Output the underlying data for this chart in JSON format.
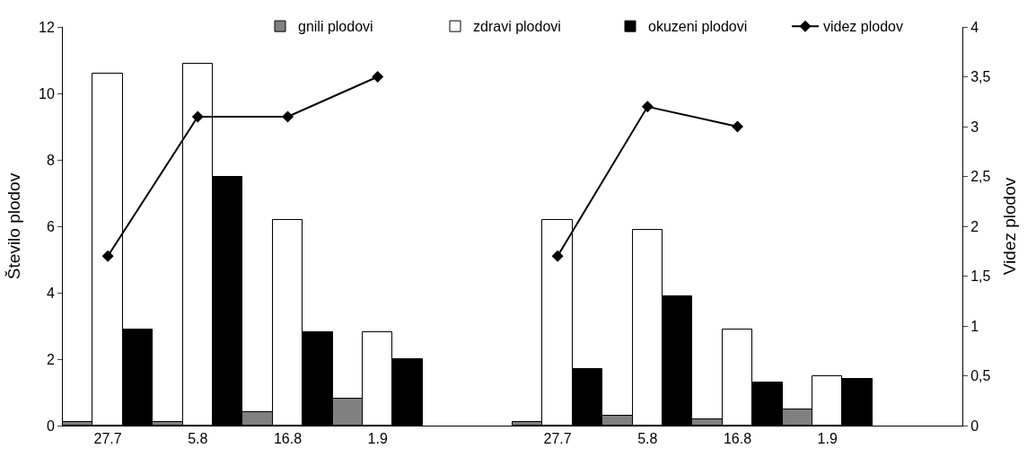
{
  "chart_data": {
    "type": "bar",
    "xlabel": null,
    "ylabel": "Število plodov",
    "y2label": "Videz plodov",
    "categories": [
      "27.7",
      "5.8",
      "16.8",
      "1.9",
      null,
      "27.7",
      "5.8",
      "16.8",
      "1.9",
      null
    ],
    "series": [
      {
        "name": "gnili plodovi",
        "color": "#808080",
        "values": [
          0.1,
          0.1,
          0.4,
          0.8,
          null,
          0.1,
          0.3,
          0.2,
          0.5,
          null
        ]
      },
      {
        "name": "zdravi plodovi",
        "color": "#ffffff",
        "values": [
          10.6,
          10.9,
          6.2,
          2.8,
          null,
          6.2,
          5.9,
          2.9,
          1.5,
          null
        ]
      },
      {
        "name": "okuzeni plodovi",
        "color": "#000000",
        "values": [
          2.9,
          7.5,
          2.8,
          2.0,
          null,
          1.7,
          3.9,
          1.3,
          1.4,
          null
        ]
      },
      {
        "name": "videz plodov",
        "color": "#000000",
        "type": "line",
        "axis": "y2",
        "marker": "diamond",
        "values": [
          1.7,
          3.1,
          3.1,
          3.5,
          null,
          1.7,
          3.2,
          3.0,
          null,
          null
        ]
      }
    ],
    "ylim": [
      0,
      12
    ],
    "yticks": [
      0,
      2,
      4,
      6,
      8,
      10,
      12
    ],
    "y2lim": [
      0,
      4
    ],
    "y2ticks": [
      0,
      {
        "value": 0.5,
        "label": "0,5"
      },
      1,
      {
        "value": 1.5,
        "label": "1,5"
      },
      2,
      {
        "value": 2.5,
        "label": "2,5"
      },
      3,
      {
        "value": 3.5,
        "label": "3,5"
      },
      4
    ],
    "legend": "top right"
  }
}
